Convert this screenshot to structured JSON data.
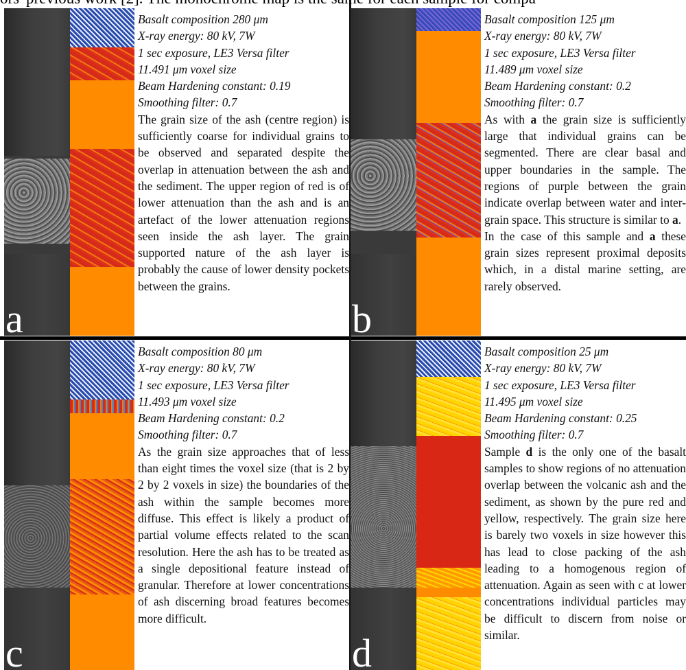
{
  "header": "ors' previous work [2]. The monochrome map is the same for each sample for compa",
  "panels": [
    {
      "letter": "a",
      "meta": [
        "Basalt composition 280 μm",
        "X-ray energy: 80 kV, 7W",
        "1 sec exposure, LE3 Versa filter",
        "11.491 μm voxel size",
        "Beam Hardening constant: 0.19",
        "Smoothing filter: 0.7"
      ],
      "body": "The grain size of the ash (centre region) is sufficiently coarse for individual grains to be observed and separated despite the overlap in attenuation between the ash and the sediment. The upper region of red is of lower attenuation than the ash and is an artefact of the lower attenuation regions seen inside the ash layer. The grain supported nature of the ash layer is probably the cause of lower density pockets between the grains."
    },
    {
      "letter": "b",
      "meta": [
        "Basalt composition 125 μm",
        "X-ray energy: 80 kV, 7W",
        "1 sec exposure, LE3 Versa filter",
        "11.489 μm voxel size",
        "Beam Hardening constant: 0.2",
        "Smoothing filter: 0.7"
      ],
      "body_pre": "As with ",
      "body_bold": "a",
      "body_post": " the grain size is sufficiently large that individual grains can be segmented. There are clear basal and upper boundaries in the sample. The regions of purple between the grain indicate overlap between water and inter-grain space. This structure is similar to ",
      "body_bold2": "a",
      "body_end": ".",
      "body2_pre": "In the case of this sample and ",
      "body2_bold": "a",
      "body2_post": " these grain sizes represent proximal deposits which, in a distal marine setting, are rarely observed."
    },
    {
      "letter": "c",
      "meta": [
        "Basalt composition 80 μm",
        "X-ray energy: 80 kV, 7W",
        "1 sec exposure, LE3 Versa filter",
        "11.493 μm voxel size",
        "Beam Hardening constant: 0.2",
        "Smoothing filter: 0.7"
      ],
      "body": "As the grain size approaches that of less than eight times the voxel size (that is 2 by 2 by 2 voxels in size) the boundaries of the ash within the sample becomes more diffuse. This effect is likely a product of partial volume effects related to the scan resolution. Here the ash has to be treated as a single depositional feature instead of granular. Therefore at lower concentrations of ash discerning broad features becomes more difficult."
    },
    {
      "letter": "d",
      "meta": [
        "Basalt composition 25 μm",
        "X-ray energy: 80 kV, 7W",
        "1 sec exposure, LE3 Versa filter",
        "11.495 μm voxel size",
        "Beam Hardening constant: 0.25",
        "Smoothing filter: 0.7"
      ],
      "body_pre": "Sample ",
      "body_bold": "d",
      "body_post": " is the only one of the basalt samples to show regions of no attenuation overlap between the volcanic ash and the sediment, as shown by the pure red and yellow, respectively. The grain size here is barely two voxels in size however this has lead to close packing of the ash leading to a homogenous region of attenuation. Again as seen with c at lower concentrations individual particles may be difficult to discern from noise or similar."
    }
  ]
}
